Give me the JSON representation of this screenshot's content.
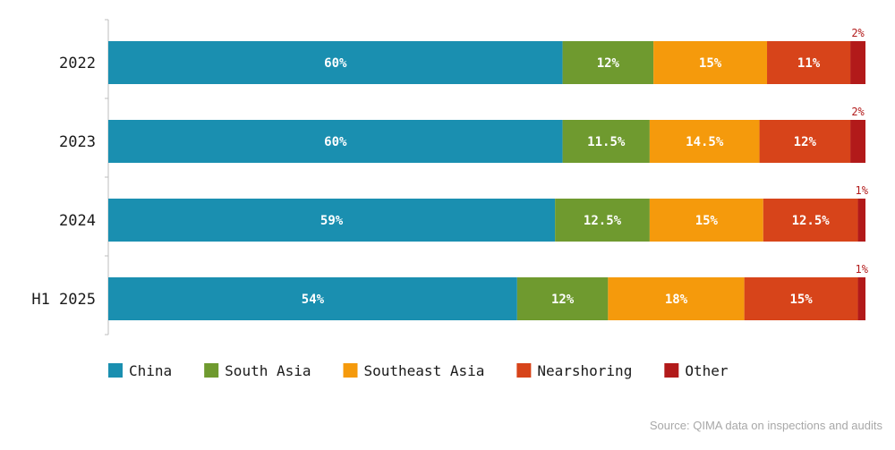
{
  "chart_data": {
    "type": "bar",
    "orientation": "horizontal",
    "stacked": true,
    "categories": [
      "2022",
      "2023",
      "2024",
      "H1 2025"
    ],
    "xlim": [
      0,
      100
    ],
    "grid": false,
    "legend_position": "bottom-left",
    "series": [
      {
        "name": "China",
        "color": "#1a8fb0",
        "values": [
          60,
          60,
          59,
          54
        ],
        "labels": [
          "60%",
          "60%",
          "59%",
          "54%"
        ]
      },
      {
        "name": "South Asia",
        "color": "#6f9a2f",
        "values": [
          12,
          11.5,
          12.5,
          12
        ],
        "labels": [
          "12%",
          "11.5%",
          "12.5%",
          "12%"
        ]
      },
      {
        "name": "Southeast Asia",
        "color": "#f59a0c",
        "values": [
          15,
          14.5,
          15,
          18
        ],
        "labels": [
          "15%",
          "14.5%",
          "15%",
          "18%"
        ]
      },
      {
        "name": "Nearshoring",
        "color": "#d7441a",
        "values": [
          11,
          12,
          12.5,
          15
        ],
        "labels": [
          "11%",
          "12%",
          "12.5%",
          "15%"
        ]
      },
      {
        "name": "Other",
        "color": "#b21a1a",
        "values": [
          2,
          2,
          1,
          1
        ],
        "labels": [
          "2%",
          "2%",
          "1%",
          "1%"
        ]
      }
    ],
    "source": "Source: QIMA data on inspections and audits"
  }
}
